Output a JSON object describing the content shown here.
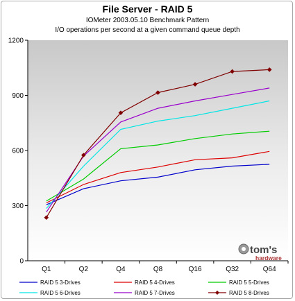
{
  "chart_data": {
    "type": "line",
    "title": "File Server - RAID 5",
    "subtitle_lines": [
      "IOMeter 2003.05.10 Benchmark Pattern",
      "I/O operations per second at a given command queue depth"
    ],
    "categories": [
      "Q1",
      "Q2",
      "Q4",
      "Q8",
      "Q16",
      "Q32",
      "Q64"
    ],
    "ylim": [
      0,
      1200
    ],
    "yticks": [
      0,
      300,
      600,
      900,
      1200
    ],
    "grid": false,
    "legend_position": "bottom",
    "series": [
      {
        "name": "RAID 5 3-Drives",
        "color": "#0000cc",
        "values": [
          305,
          392,
          435,
          455,
          495,
          515,
          525
        ]
      },
      {
        "name": "RAID 5 4-Drives",
        "color": "#dd0000",
        "values": [
          315,
          415,
          480,
          510,
          550,
          560,
          595
        ]
      },
      {
        "name": "RAID 5 5-Drives",
        "color": "#00cc00",
        "values": [
          325,
          445,
          610,
          630,
          665,
          690,
          705
        ]
      },
      {
        "name": "RAID 5 6-Drives",
        "color": "#00e5e5",
        "values": [
          285,
          515,
          715,
          760,
          790,
          830,
          870
        ]
      },
      {
        "name": "RAID 5 7-Drives",
        "color": "#9900cc",
        "values": [
          265,
          570,
          755,
          830,
          870,
          905,
          940
        ]
      },
      {
        "name": "RAID 5 8-Drives",
        "color": "#800000",
        "marker": "diamond",
        "values": [
          235,
          575,
          805,
          915,
          960,
          1030,
          1040
        ]
      }
    ]
  },
  "logo": {
    "name": "tom's",
    "sub": "hardware"
  }
}
